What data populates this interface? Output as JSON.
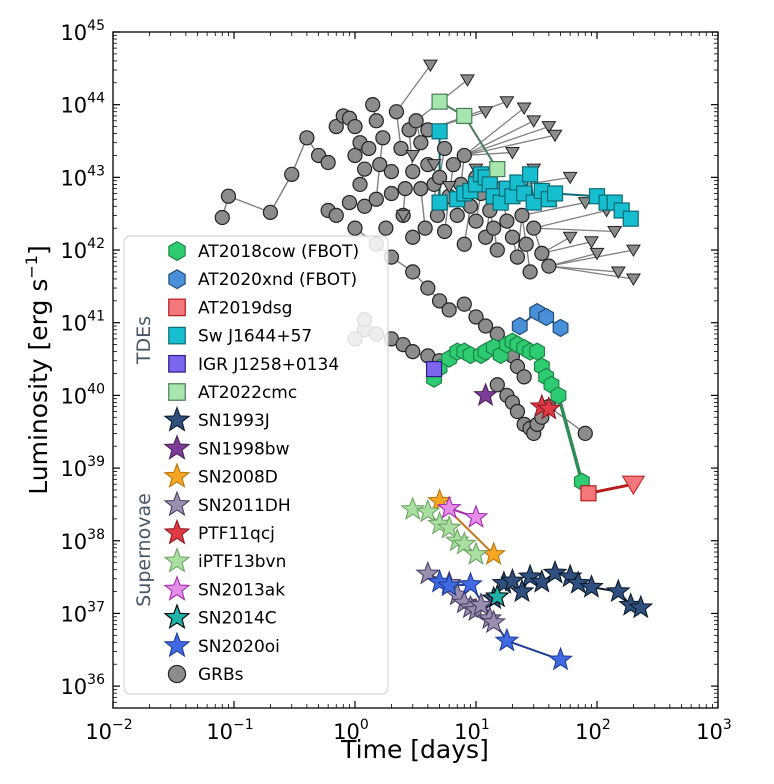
{
  "chart_data": {
    "type": "scatter",
    "title": "",
    "xlabel": "Time [days]",
    "ylabel_base": "Luminosity [erg s",
    "ylabel_sup": "−1",
    "ylabel_end": "]",
    "xscale": "log",
    "yscale": "log",
    "xlim": [
      0.01,
      1000
    ],
    "ylim": [
      5e+35,
      1e+45
    ],
    "x_ticks": [
      {
        "base": "10",
        "exp": "−2",
        "value": 0.01
      },
      {
        "base": "10",
        "exp": "−1",
        "value": 0.1
      },
      {
        "base": "10",
        "exp": "0",
        "value": 1
      },
      {
        "base": "10",
        "exp": "1",
        "value": 10
      },
      {
        "base": "10",
        "exp": "2",
        "value": 100
      },
      {
        "base": "10",
        "exp": "3",
        "value": 1000
      }
    ],
    "y_ticks": [
      {
        "base": "10",
        "exp": "36",
        "value": 1e+36
      },
      {
        "base": "10",
        "exp": "37",
        "value": 1e+37
      },
      {
        "base": "10",
        "exp": "38",
        "value": 1e+38
      },
      {
        "base": "10",
        "exp": "39",
        "value": 1e+39
      },
      {
        "base": "10",
        "exp": "40",
        "value": 1e+40
      },
      {
        "base": "10",
        "exp": "41",
        "value": 1e+41
      },
      {
        "base": "10",
        "exp": "42",
        "value": 1e+42
      },
      {
        "base": "10",
        "exp": "43",
        "value": 1e+43
      },
      {
        "base": "10",
        "exp": "44",
        "value": 1e+44
      },
      {
        "base": "10",
        "exp": "45",
        "value": 1e+45
      }
    ],
    "legend_groups": {
      "tde": "TDEs",
      "sn": "Supernovae"
    },
    "series": [
      {
        "name": "AT2018cow (FBOT)",
        "marker": "hexagon",
        "color": "#2ecc71",
        "edge": "#1e8449",
        "line": "#1e8449",
        "points": [
          [
            4.5,
            1.7e+40
          ],
          [
            5,
            2.4e+40
          ],
          [
            6,
            3.2e+40
          ],
          [
            7,
            4e+40
          ],
          [
            8,
            4e+40
          ],
          [
            9,
            3.6e+40
          ],
          [
            11,
            3.6e+40
          ],
          [
            12,
            4e+40
          ],
          [
            14,
            4.6e+40
          ],
          [
            16,
            3.6e+40
          ],
          [
            18,
            5e+40
          ],
          [
            20,
            5.5e+40
          ],
          [
            22,
            5e+40
          ],
          [
            25,
            4.5e+40
          ],
          [
            28,
            4e+40
          ],
          [
            32,
            4e+40
          ],
          [
            35,
            2.5e+40
          ],
          [
            38,
            1.8e+40
          ],
          [
            42,
            1.4e+40
          ],
          [
            48,
            1e+40
          ],
          [
            75,
            6.5e+38
          ]
        ]
      },
      {
        "name": "AT2020xnd (FBOT)",
        "marker": "hexagon",
        "color": "#4a90d9",
        "edge": "#1f4e79",
        "line": "#1f4e79",
        "points": [
          [
            23,
            9e+40
          ],
          [
            32,
            1.4e+41
          ],
          [
            38,
            1.2e+41
          ],
          [
            50,
            8.5e+40
          ]
        ]
      },
      {
        "name": "AT2019dsg",
        "marker": "square",
        "color": "#f4777c",
        "edge": "#b71c1c",
        "line": "#b71c1c",
        "points": [
          [
            85,
            4.5e+38
          ]
        ],
        "upper_limits": [
          [
            200,
            6e+38
          ]
        ]
      },
      {
        "name": "Sw J1644+57",
        "marker": "square",
        "color": "#17becf",
        "edge": "#0b6a74",
        "line": "#0b6a74",
        "points": [
          [
            5,
            4.3e+43
          ],
          [
            5,
            4.5e+42
          ],
          [
            7,
            5e+42
          ],
          [
            8,
            6e+42
          ],
          [
            9,
            6.5e+42
          ],
          [
            10,
            8e+42
          ],
          [
            11,
            1.1e+43
          ],
          [
            12,
            1e+43
          ],
          [
            13,
            8e+42
          ],
          [
            14,
            5.5e+42
          ],
          [
            16,
            4.5e+42
          ],
          [
            18,
            7e+42
          ],
          [
            20,
            5.5e+42
          ],
          [
            22,
            8.5e+42
          ],
          [
            25,
            6e+42
          ],
          [
            28,
            1.1e+43
          ],
          [
            30,
            4.5e+42
          ],
          [
            35,
            6.5e+42
          ],
          [
            40,
            5e+42
          ],
          [
            45,
            6e+42
          ],
          [
            100,
            5.5e+42
          ],
          [
            120,
            4.5e+42
          ],
          [
            140,
            4.5e+42
          ],
          [
            160,
            3.5e+42
          ],
          [
            190,
            2.7e+42
          ]
        ]
      },
      {
        "name": "IGR J1258+0134",
        "marker": "square",
        "color": "#7b68ee",
        "edge": "#2e1a87",
        "line": "#2e1a87",
        "points": [
          [
            4.5,
            2.3e+40
          ]
        ]
      },
      {
        "name": "AT2022cmc",
        "marker": "square",
        "color": "#a8e6b0",
        "edge": "#4a7c59",
        "line": "#4a7c59",
        "points": [
          [
            5,
            1.1e+44
          ],
          [
            8,
            7e+43
          ],
          [
            15,
            1.3e+43
          ]
        ]
      },
      {
        "name": "SN1993J",
        "marker": "star",
        "color": "#2f4f7f",
        "edge": "#0d1b2a",
        "line": "#0d1b2a",
        "points": [
          [
            14,
            1.6e+37
          ],
          [
            17,
            2.6e+37
          ],
          [
            20,
            2.8e+37
          ],
          [
            24,
            2e+37
          ],
          [
            28,
            3.2e+37
          ],
          [
            35,
            2.7e+37
          ],
          [
            45,
            3.6e+37
          ],
          [
            60,
            3.2e+37
          ],
          [
            70,
            2.6e+37
          ],
          [
            90,
            2.3e+37
          ],
          [
            150,
            2e+37
          ],
          [
            190,
            1.3e+37
          ],
          [
            230,
            1.2e+37
          ]
        ]
      },
      {
        "name": "SN1998bw",
        "marker": "star",
        "color": "#7d3c98",
        "edge": "#4a235a",
        "line": "#4a235a",
        "points": [
          [
            12,
            1e+40
          ]
        ]
      },
      {
        "name": "SN2008D",
        "marker": "star",
        "color": "#f5a623",
        "edge": "#b9770e",
        "line": "#c47a1a",
        "points": [
          [
            5,
            3.5e+38
          ],
          [
            14,
            6.5e+37
          ]
        ]
      },
      {
        "name": "SN2011DH",
        "marker": "star",
        "color": "#9b8fb0",
        "edge": "#4b3f63",
        "line": "#4b3f63",
        "points": [
          [
            4,
            3.5e+37
          ],
          [
            6,
            2.6e+37
          ],
          [
            7,
            1.8e+37
          ],
          [
            8,
            1.4e+37
          ],
          [
            9,
            1.2e+37
          ],
          [
            10,
            1.1e+37
          ],
          [
            11,
            1.3e+37
          ],
          [
            13,
            8.5e+36
          ],
          [
            14,
            7.5e+36
          ]
        ]
      },
      {
        "name": "PTF11qcj",
        "marker": "star",
        "color": "#e03a45",
        "edge": "#8e1b22",
        "line": "#8e1b22",
        "points": [
          [
            35,
            7e+39
          ],
          [
            40,
            6.5e+39
          ]
        ]
      },
      {
        "name": "iPTF13bvn",
        "marker": "star",
        "color": "#a9dfa0",
        "edge": "#6fa465",
        "line": "#6fa465",
        "points": [
          [
            3,
            2.7e+38
          ],
          [
            4,
            2.5e+38
          ],
          [
            5,
            1.7e+38
          ],
          [
            6,
            1.5e+38
          ],
          [
            7,
            1e+38
          ],
          [
            8,
            9e+37
          ],
          [
            10,
            6.5e+37
          ]
        ]
      },
      {
        "name": "SN2013ak",
        "marker": "star",
        "color": "#e58ee8",
        "edge": "#a32bb0",
        "line": "#a32bb0",
        "points": [
          [
            6,
            2.8e+38
          ],
          [
            10,
            2.1e+38
          ]
        ]
      },
      {
        "name": "SN2014C",
        "marker": "star",
        "color": "#20b2aa",
        "edge": "#000000",
        "line": "#000000",
        "points": [
          [
            15,
            1.7e+37
          ]
        ]
      },
      {
        "name": "SN2020oi",
        "marker": "star",
        "color": "#4169e1",
        "edge": "#1d3c9a",
        "line": "#1d3c9a",
        "points": [
          [
            5,
            2.7e+37
          ],
          [
            6,
            2.4e+37
          ],
          [
            9,
            2.5e+37
          ],
          [
            18,
            4.2e+36
          ],
          [
            50,
            2.3e+36
          ]
        ]
      },
      {
        "name": "GRBs",
        "marker": "circle",
        "color": "#8c8c8c",
        "edge": "#222222",
        "line": "#808080",
        "points": [
          [
            0.08,
            2.8e+42
          ],
          [
            0.09,
            5.5e+42
          ],
          [
            0.2,
            3.3e+42
          ],
          [
            0.3,
            1.1e+43
          ],
          [
            0.4,
            3.5e+43
          ],
          [
            0.5,
            2e+43
          ],
          [
            0.6,
            1.6e+43
          ],
          [
            0.6,
            3.5e+42
          ],
          [
            0.7,
            5e+43
          ],
          [
            0.7,
            3e+42
          ],
          [
            0.8,
            7e+43
          ],
          [
            0.9,
            6.5e+43
          ],
          [
            0.9,
            4.5e+42
          ],
          [
            1.0,
            5e+43
          ],
          [
            1.0,
            2e+43
          ],
          [
            1.1,
            3e+43
          ],
          [
            1.1,
            8e+42
          ],
          [
            1.2,
            1.3e+43
          ],
          [
            1.2,
            4e+42
          ],
          [
            1.3,
            2.5e+43
          ],
          [
            1.4,
            1e+44
          ],
          [
            1.5,
            6e+43
          ],
          [
            1.5,
            5e+42
          ],
          [
            1.6,
            1.5e+43
          ],
          [
            1.7,
            3.5e+43
          ],
          [
            1.8,
            2e+42
          ],
          [
            2.0,
            1.2e+43
          ],
          [
            2.0,
            6e+42
          ],
          [
            2.2,
            8e+43
          ],
          [
            2.4,
            2.5e+43
          ],
          [
            2.5,
            3e+42
          ],
          [
            2.6,
            7e+42
          ],
          [
            2.8,
            4.5e+43
          ],
          [
            3.0,
            1.2e+43
          ],
          [
            3.0,
            1.5e+42
          ],
          [
            3.2,
            6e+43
          ],
          [
            3.5,
            3e+43
          ],
          [
            3.5,
            7e+42
          ],
          [
            3.8,
            2e+42
          ],
          [
            4.0,
            1.5e+43
          ],
          [
            4.0,
            4.5e+43
          ],
          [
            4.5,
            8e+42
          ],
          [
            4.8,
            3e+42
          ],
          [
            5.0,
            1e+43
          ],
          [
            5.5,
            2.5e+43
          ],
          [
            5.5,
            1.8e+42
          ],
          [
            6.0,
            5.5e+42
          ],
          [
            6.5,
            1.5e+43
          ],
          [
            7.0,
            3e+42
          ],
          [
            7.5,
            8e+42
          ],
          [
            8.0,
            2e+43
          ],
          [
            8.0,
            1.2e+42
          ],
          [
            9.0,
            4e+42
          ],
          [
            10.0,
            1e+43
          ],
          [
            10.0,
            2.5e+42
          ],
          [
            11.0,
            6e+42
          ],
          [
            12.0,
            1.5e+42
          ],
          [
            13.0,
            3.5e+42
          ],
          [
            14.0,
            2e+42
          ],
          [
            15.0,
            1e+42
          ],
          [
            16.0,
            7e+42
          ],
          [
            18.0,
            2.5e+42
          ],
          [
            20.0,
            1.5e+42
          ],
          [
            22.0,
            8e+41
          ],
          [
            24.0,
            3e+42
          ],
          [
            26.0,
            1.2e+42
          ],
          [
            28.0,
            5e+41
          ],
          [
            30.0,
            2e+42
          ],
          [
            35.0,
            9e+41
          ],
          [
            40.0,
            6e+41
          ],
          [
            1.0,
            2e+42
          ],
          [
            1.5,
            1.2e+42
          ],
          [
            2.0,
            8e+41
          ],
          [
            3.0,
            5e+41
          ],
          [
            4.0,
            3e+41
          ],
          [
            5.0,
            2e+41
          ],
          [
            6.0,
            1.5e+41
          ],
          [
            8.0,
            1.8e+41
          ],
          [
            10.0,
            1.2e+41
          ],
          [
            12.0,
            9e+40
          ],
          [
            15.0,
            7e+40
          ],
          [
            18.0,
            5e+40
          ],
          [
            20.0,
            3.5e+40
          ],
          [
            22.0,
            2.5e+40
          ],
          [
            25.0,
            1.8e+40
          ],
          [
            1.2,
            8e+40
          ],
          [
            1.5,
            7e+40
          ],
          [
            2.0,
            6e+40
          ],
          [
            2.5,
            5e+40
          ],
          [
            3.0,
            4e+40
          ],
          [
            4.0,
            3.5e+40
          ],
          [
            5.0,
            3e+40
          ],
          [
            15.0,
            1.4e+40
          ],
          [
            18.0,
            1e+40
          ],
          [
            20.0,
            8e+39
          ],
          [
            22.0,
            6e+39
          ],
          [
            25.0,
            4e+39
          ],
          [
            28.0,
            3.5e+39
          ],
          [
            30.0,
            3e+39
          ],
          [
            32.0,
            4e+39
          ],
          [
            35.0,
            5e+39
          ],
          [
            40.0,
            7e+39
          ],
          [
            80.0,
            3e+39
          ],
          [
            1.2,
            1.1e+41
          ],
          [
            1.0,
            6e+40
          ]
        ],
        "upper_limits": [
          [
            4.2,
            3.5e+44
          ],
          [
            8.5,
            2.2e+44
          ],
          [
            12,
            8e+43
          ],
          [
            18,
            1.1e+44
          ],
          [
            25,
            9e+43
          ],
          [
            30,
            6e+43
          ],
          [
            40,
            5e+43
          ],
          [
            45,
            3.8e+43
          ],
          [
            3,
            2e+43
          ],
          [
            4.5,
            1.5e+43
          ],
          [
            10,
            1.3e+43
          ],
          [
            20,
            2.2e+43
          ],
          [
            30,
            1.3e+43
          ],
          [
            60,
            1e+43
          ],
          [
            80,
            4.5e+42
          ],
          [
            120,
            3.5e+42
          ],
          [
            60,
            1.5e+42
          ],
          [
            90,
            1.3e+42
          ],
          [
            140,
            1.8e+42
          ],
          [
            200,
            1e+42
          ],
          [
            100,
            9e+41
          ],
          [
            150,
            5e+41
          ],
          [
            200,
            4e+41
          ],
          [
            2.5,
            3e+42
          ],
          [
            6,
            7.5e+42
          ]
        ]
      }
    ]
  }
}
